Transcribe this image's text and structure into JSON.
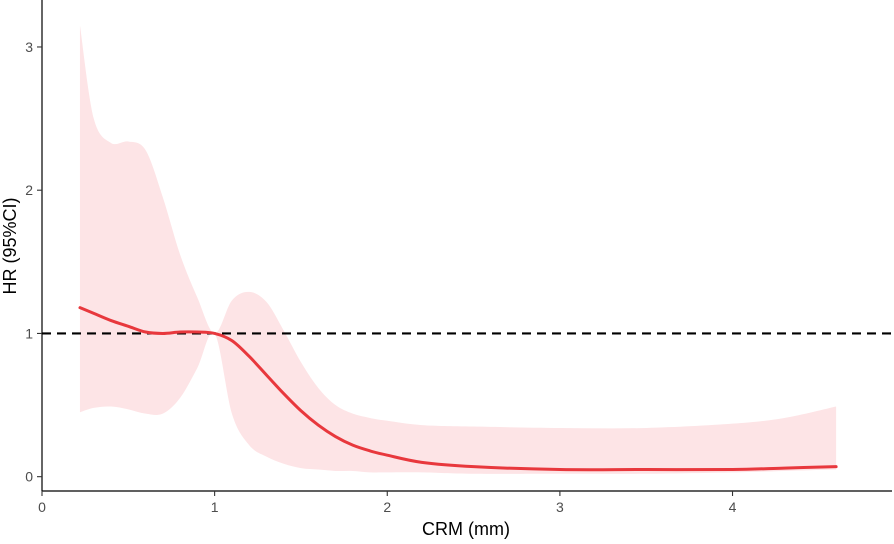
{
  "chart_data": {
    "type": "line",
    "title": "",
    "xlabel": "CRM (mm)",
    "ylabel": "HR (95%CI)",
    "xlim": [
      0,
      4.75
    ],
    "ylim": [
      -0.1,
      3.3
    ],
    "xticks": [
      0,
      1,
      2,
      3,
      4
    ],
    "yticks": [
      0,
      1,
      2,
      3
    ],
    "grid": false,
    "legend": "none",
    "reference_line": {
      "y": 1,
      "style": "dashed",
      "color": "#000000"
    },
    "series": [
      {
        "color": "#e8383d",
        "band_color": "#fde4e6",
        "x": [
          0.22,
          0.3,
          0.4,
          0.5,
          0.6,
          0.7,
          0.8,
          0.9,
          1.0,
          1.1,
          1.2,
          1.3,
          1.4,
          1.5,
          1.6,
          1.7,
          1.8,
          1.9,
          2.0,
          2.2,
          2.5,
          3.0,
          3.5,
          4.0,
          4.3,
          4.6
        ],
        "y": [
          1.18,
          1.14,
          1.09,
          1.05,
          1.01,
          1.0,
          1.01,
          1.01,
          1.0,
          0.95,
          0.84,
          0.71,
          0.58,
          0.46,
          0.36,
          0.28,
          0.22,
          0.18,
          0.15,
          0.1,
          0.07,
          0.05,
          0.05,
          0.05,
          0.06,
          0.07
        ],
        "lower": [
          0.45,
          0.48,
          0.49,
          0.47,
          0.44,
          0.44,
          0.55,
          0.76,
          1.0,
          0.44,
          0.22,
          0.14,
          0.09,
          0.06,
          0.05,
          0.04,
          0.04,
          0.03,
          0.03,
          0.03,
          0.02,
          0.02,
          0.02,
          0.03,
          0.04,
          0.05
        ],
        "upper": [
          3.15,
          2.5,
          2.33,
          2.34,
          2.28,
          1.95,
          1.55,
          1.25,
          1.0,
          1.23,
          1.29,
          1.22,
          1.02,
          0.8,
          0.62,
          0.5,
          0.44,
          0.41,
          0.39,
          0.36,
          0.35,
          0.34,
          0.34,
          0.37,
          0.41,
          0.49
        ]
      }
    ]
  }
}
